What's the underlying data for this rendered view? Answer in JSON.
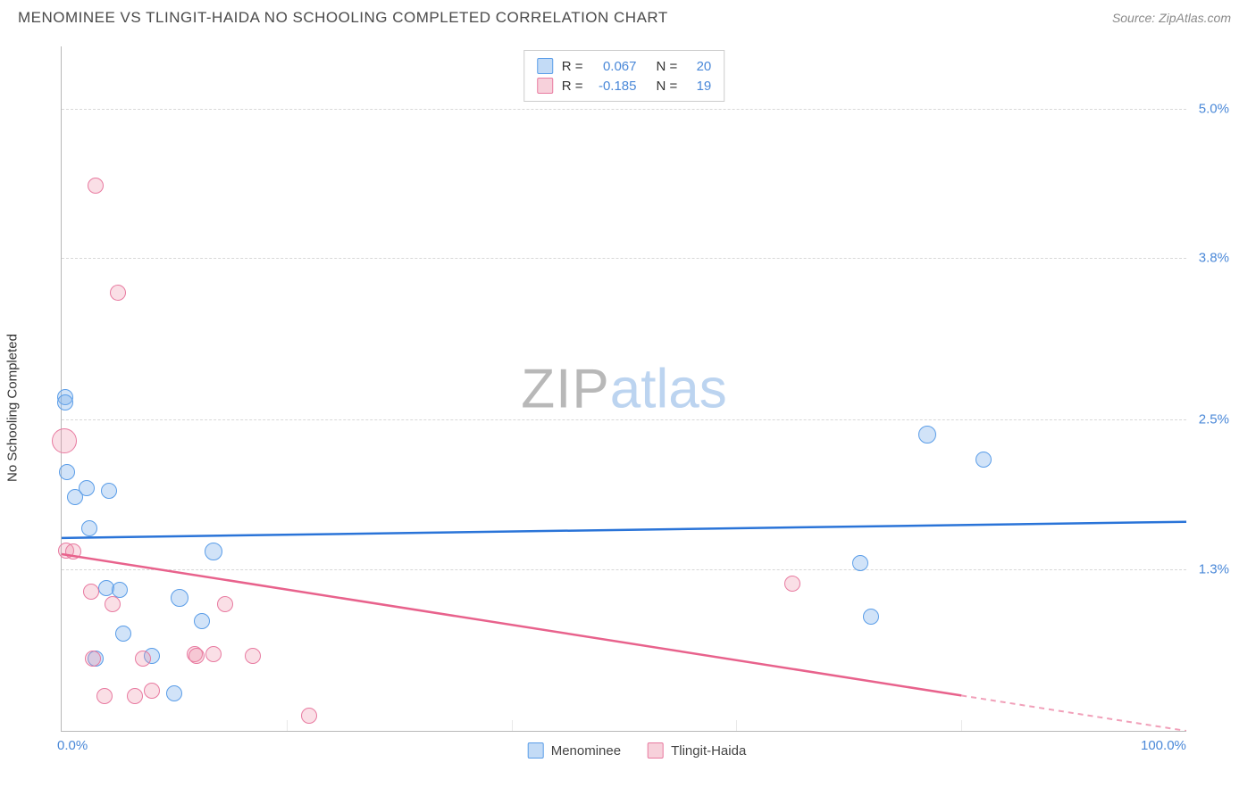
{
  "title": "MENOMINEE VS TLINGIT-HAIDA NO SCHOOLING COMPLETED CORRELATION CHART",
  "source": "Source: ZipAtlas.com",
  "y_axis_label": "No Schooling Completed",
  "watermark": {
    "part1": "ZIP",
    "part2": "atlas"
  },
  "chart": {
    "type": "scatter",
    "background_color": "#ffffff",
    "grid_color": "#d8d8d8",
    "axis_color": "#b8b8b8",
    "tick_label_color": "#4a88d8",
    "xlim": [
      0,
      100
    ],
    "ylim": [
      0,
      5.5
    ],
    "x_ticks": [
      {
        "value": 0,
        "label": "0.0%"
      },
      {
        "value": 100,
        "label": "100.0%"
      }
    ],
    "x_minor_ticks": [
      20,
      40,
      60,
      80
    ],
    "y_ticks": [
      {
        "value": 1.3,
        "label": "1.3%"
      },
      {
        "value": 2.5,
        "label": "2.5%"
      },
      {
        "value": 3.8,
        "label": "3.8%"
      },
      {
        "value": 5.0,
        "label": "5.0%"
      }
    ],
    "series": [
      {
        "name": "Menominee",
        "color_fill": "rgba(122,175,236,0.35)",
        "color_stroke": "#5a9de8",
        "trend_color": "#2a74d8",
        "r": "0.067",
        "n": "20",
        "trend": {
          "y_at_x0": 1.55,
          "y_at_x100": 1.68,
          "dashed_from_x": null
        },
        "points": [
          {
            "x": 0.3,
            "y": 2.68,
            "size": 18
          },
          {
            "x": 0.3,
            "y": 2.64,
            "size": 18
          },
          {
            "x": 0.5,
            "y": 2.08,
            "size": 18
          },
          {
            "x": 1.2,
            "y": 1.88,
            "size": 18
          },
          {
            "x": 2.2,
            "y": 1.95,
            "size": 18
          },
          {
            "x": 4.2,
            "y": 1.93,
            "size": 18
          },
          {
            "x": 2.5,
            "y": 1.63,
            "size": 18
          },
          {
            "x": 13.5,
            "y": 1.44,
            "size": 20
          },
          {
            "x": 5.5,
            "y": 0.78,
            "size": 18
          },
          {
            "x": 8.0,
            "y": 0.6,
            "size": 18
          },
          {
            "x": 10.5,
            "y": 1.07,
            "size": 20
          },
          {
            "x": 12.5,
            "y": 0.88,
            "size": 18
          },
          {
            "x": 4.0,
            "y": 1.15,
            "size": 18
          },
          {
            "x": 10.0,
            "y": 0.3,
            "size": 18
          },
          {
            "x": 3.0,
            "y": 0.58,
            "size": 18
          },
          {
            "x": 5.2,
            "y": 1.13,
            "size": 18
          },
          {
            "x": 77.0,
            "y": 2.38,
            "size": 20
          },
          {
            "x": 82.0,
            "y": 2.18,
            "size": 18
          },
          {
            "x": 71.0,
            "y": 1.35,
            "size": 18
          },
          {
            "x": 72.0,
            "y": 0.92,
            "size": 18
          }
        ]
      },
      {
        "name": "Tlingit-Haida",
        "color_fill": "rgba(236,140,165,0.28)",
        "color_stroke": "#e87aa0",
        "trend_color": "#e8628c",
        "r": "-0.185",
        "n": "19",
        "trend": {
          "y_at_x0": 1.42,
          "y_at_x100": 0.0,
          "dashed_from_x": 80
        },
        "points": [
          {
            "x": 3.0,
            "y": 4.38,
            "size": 18
          },
          {
            "x": 5.0,
            "y": 3.52,
            "size": 18
          },
          {
            "x": 0.2,
            "y": 2.33,
            "size": 28
          },
          {
            "x": 0.4,
            "y": 1.45,
            "size": 18
          },
          {
            "x": 1.0,
            "y": 1.44,
            "size": 18
          },
          {
            "x": 2.6,
            "y": 1.12,
            "size": 18
          },
          {
            "x": 4.5,
            "y": 1.02,
            "size": 18
          },
          {
            "x": 2.8,
            "y": 0.58,
            "size": 18
          },
          {
            "x": 7.2,
            "y": 0.58,
            "size": 18
          },
          {
            "x": 11.8,
            "y": 0.62,
            "size": 18
          },
          {
            "x": 12.0,
            "y": 0.6,
            "size": 18
          },
          {
            "x": 14.5,
            "y": 1.02,
            "size": 18
          },
          {
            "x": 13.5,
            "y": 0.62,
            "size": 18
          },
          {
            "x": 17.0,
            "y": 0.6,
            "size": 18
          },
          {
            "x": 3.8,
            "y": 0.28,
            "size": 18
          },
          {
            "x": 6.5,
            "y": 0.28,
            "size": 18
          },
          {
            "x": 8.0,
            "y": 0.32,
            "size": 18
          },
          {
            "x": 22.0,
            "y": 0.12,
            "size": 18
          },
          {
            "x": 65.0,
            "y": 1.18,
            "size": 18
          }
        ]
      }
    ]
  },
  "legend_top": {
    "r_label": "R =",
    "n_label": "N ="
  },
  "legend_bottom": {
    "items": [
      "Menominee",
      "Tlingit-Haida"
    ]
  }
}
